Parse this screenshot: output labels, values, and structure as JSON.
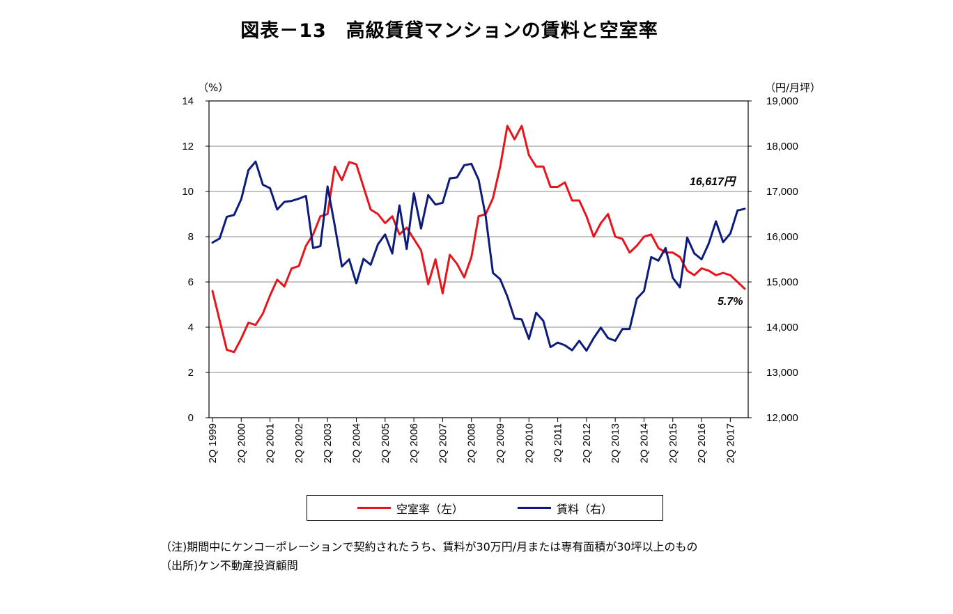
{
  "chart_data": {
    "type": "line",
    "title": "図表－13　高級賃貸マンションの賃料と空室率",
    "left_unit": "（%）",
    "right_unit": "（円/月坪）",
    "ylim_left": [
      0,
      14
    ],
    "ylim_right": [
      12000,
      19000
    ],
    "left_ticks": [
      "0",
      "2",
      "4",
      "6",
      "8",
      "10",
      "12",
      "14"
    ],
    "right_ticks": [
      "12,000",
      "13,000",
      "14,000",
      "15,000",
      "16,000",
      "17,000",
      "18,000",
      "19,000"
    ],
    "x_ticks": [
      "2Q 1999",
      "2Q 2000",
      "2Q 2001",
      "2Q 2002",
      "2Q 2003",
      "2Q 2004",
      "2Q 2005",
      "2Q 2006",
      "2Q 2007",
      "2Q 2008",
      "2Q 2009",
      "2Q 2010",
      "2Q 2011",
      "2Q 2012",
      "2Q 2013",
      "2Q 2014",
      "2Q 2015",
      "2Q 2016",
      "2Q 2017"
    ],
    "x_start": "2Q 1999",
    "grid": true,
    "series": [
      {
        "name": "空室率（左）",
        "axis": "left",
        "color": "#e8141c",
        "values": [
          5.6,
          4.3,
          3.0,
          2.9,
          3.5,
          4.2,
          4.1,
          4.6,
          5.4,
          6.1,
          5.8,
          6.6,
          6.7,
          7.6,
          8.1,
          8.9,
          9.0,
          11.1,
          10.5,
          11.3,
          11.2,
          10.2,
          9.2,
          9.0,
          8.6,
          8.9,
          8.1,
          8.4,
          7.9,
          7.4,
          5.9,
          7.0,
          5.5,
          7.2,
          6.8,
          6.2,
          7.1,
          8.9,
          9.0,
          9.7,
          11.1,
          12.9,
          12.3,
          12.9,
          11.6,
          11.1,
          11.1,
          10.2,
          10.2,
          10.4,
          9.6,
          9.6,
          8.9,
          8.0,
          8.6,
          9.0,
          8.0,
          7.9,
          7.3,
          7.6,
          8.0,
          8.1,
          7.5,
          7.3,
          7.3,
          7.1,
          6.5,
          6.3,
          6.6,
          6.5,
          6.3,
          6.4,
          6.3,
          6.0,
          5.7
        ]
      },
      {
        "name": "賃料（右）",
        "axis": "right",
        "color": "#0d1b7a",
        "values": [
          15870,
          15960,
          16440,
          16480,
          16830,
          17470,
          17660,
          17150,
          17070,
          16600,
          16770,
          16790,
          16840,
          16900,
          15750,
          15790,
          17110,
          16250,
          15340,
          15500,
          14970,
          15510,
          15380,
          15830,
          16050,
          15630,
          16690,
          15730,
          16960,
          16180,
          16920,
          16710,
          16750,
          17290,
          17310,
          17580,
          17610,
          17260,
          16440,
          15200,
          15060,
          14680,
          14190,
          14170,
          13740,
          14320,
          14140,
          13560,
          13660,
          13600,
          13490,
          13700,
          13480,
          13760,
          13990,
          13760,
          13700,
          13960,
          13960,
          14630,
          14800,
          15550,
          15470,
          15750,
          15090,
          14880,
          15980,
          15630,
          15500,
          15850,
          16340,
          15880,
          16070,
          16580,
          16617
        ]
      }
    ],
    "annotations": {
      "rent_last": "16,617円",
      "vacancy_last": "5.7%"
    }
  },
  "legend": {
    "vacancy_label": "空室率（左）",
    "rent_label": "賃料（右）"
  },
  "notes": {
    "note": "（注)期間中にケンコーポレーションで契約されたうち、賃料が30万円/月または専有面積が30坪以上のもの",
    "source": "（出所)ケン不動産投資顧問"
  }
}
